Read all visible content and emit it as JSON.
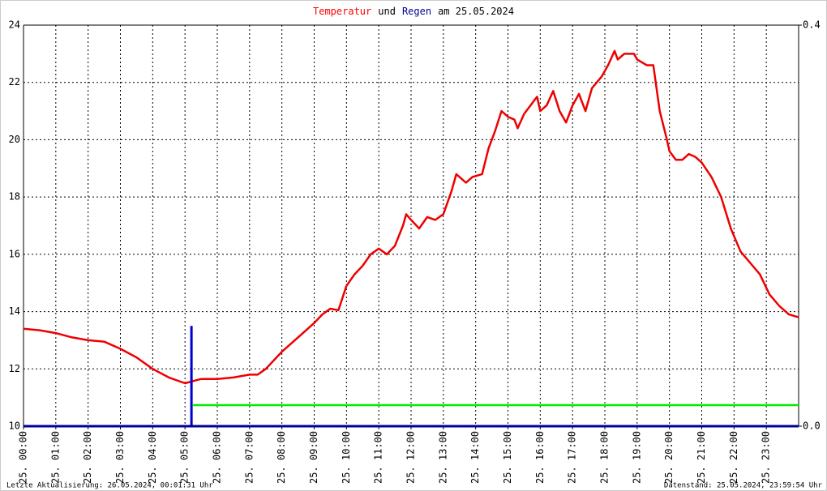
{
  "chart_data": {
    "type": "line",
    "title": [
      {
        "text": "Temperatur",
        "color": "#ff0000"
      },
      {
        "text": "und",
        "color": "#000000"
      },
      {
        "text": "Regen",
        "color": "#000099"
      },
      {
        "text": "am 25.05.2024",
        "color": "#000000"
      }
    ],
    "footer_left": "Letzte Aktualisierung: 26.05.2024, 00:01:31 Uhr",
    "footer_right": "Datenstand: 25.05.2024, 23:59:54 Uhr",
    "xlim": [
      0,
      24
    ],
    "xticks": [
      {
        "value": 0,
        "label": "25. 00:00"
      },
      {
        "value": 1,
        "label": "25. 01:00"
      },
      {
        "value": 2,
        "label": "25. 02:00"
      },
      {
        "value": 3,
        "label": "25. 03:00"
      },
      {
        "value": 4,
        "label": "25. 04:00"
      },
      {
        "value": 5,
        "label": "25. 05:00"
      },
      {
        "value": 6,
        "label": "25. 06:00"
      },
      {
        "value": 7,
        "label": "25. 07:00"
      },
      {
        "value": 8,
        "label": "25. 08:00"
      },
      {
        "value": 9,
        "label": "25. 09:00"
      },
      {
        "value": 10,
        "label": "25. 10:00"
      },
      {
        "value": 11,
        "label": "25. 11:00"
      },
      {
        "value": 12,
        "label": "25. 12:00"
      },
      {
        "value": 13,
        "label": "25. 13:00"
      },
      {
        "value": 14,
        "label": "25. 14:00"
      },
      {
        "value": 15,
        "label": "25. 15:00"
      },
      {
        "value": 16,
        "label": "25. 16:00"
      },
      {
        "value": 17,
        "label": "25. 17:00"
      },
      {
        "value": 18,
        "label": "25. 18:00"
      },
      {
        "value": 19,
        "label": "25. 19:00"
      },
      {
        "value": 20,
        "label": "25. 20:00"
      },
      {
        "value": 21,
        "label": "25. 21:00"
      },
      {
        "value": 22,
        "label": "25. 22:00"
      },
      {
        "value": 23,
        "label": "25. 23:00"
      }
    ],
    "ylim": [
      10,
      24
    ],
    "yticks": [
      10,
      12,
      14,
      16,
      18,
      20,
      22,
      24
    ],
    "y2lim": [
      0,
      0.4
    ],
    "y2ticks": [
      {
        "value": 0,
        "label": "0.0"
      },
      0.4
    ],
    "grid": true,
    "series": [
      {
        "color": "#ee0000",
        "x": [
          0,
          0.5,
          1,
          1.5,
          2,
          2.5,
          3,
          3.5,
          4,
          4.5,
          5,
          5.5,
          6,
          6.5,
          7,
          7.25,
          7.5,
          8,
          8.5,
          9,
          9.25,
          9.5,
          9.75,
          10,
          10.25,
          10.5,
          10.75,
          11,
          11.25,
          11.5,
          11.75,
          11.85,
          12,
          12.25,
          12.5,
          12.75,
          13,
          13.25,
          13.4,
          13.7,
          13.9,
          14.2,
          14.4,
          14.6,
          14.8,
          15,
          15.2,
          15.3,
          15.5,
          15.7,
          15.9,
          16,
          16.2,
          16.4,
          16.6,
          16.8,
          17,
          17.2,
          17.4,
          17.6,
          17.9,
          18.1,
          18.3,
          18.4,
          18.6,
          18.9,
          19,
          19.3,
          19.5,
          19.7,
          19.9,
          20,
          20.2,
          20.4,
          20.6,
          20.8,
          21,
          21.3,
          21.6,
          21.9,
          22.2,
          22.5,
          22.8,
          23.1,
          23.4,
          23.7,
          24
        ],
        "values": [
          13.4,
          13.35,
          13.25,
          13.1,
          13.0,
          12.95,
          12.7,
          12.4,
          12.0,
          11.7,
          11.5,
          11.65,
          11.65,
          11.7,
          11.8,
          11.8,
          12.0,
          12.6,
          13.1,
          13.6,
          13.9,
          14.1,
          14.05,
          14.9,
          15.3,
          15.6,
          16.0,
          16.2,
          16.0,
          16.3,
          17.0,
          17.4,
          17.2,
          16.9,
          17.3,
          17.2,
          17.4,
          18.2,
          18.8,
          18.5,
          18.7,
          18.8,
          19.7,
          20.3,
          21.0,
          20.8,
          20.7,
          20.4,
          20.9,
          21.2,
          21.5,
          21.0,
          21.2,
          21.7,
          21.0,
          20.6,
          21.2,
          21.6,
          21.0,
          21.8,
          22.2,
          22.6,
          23.1,
          22.8,
          23.0,
          23.0,
          22.8,
          22.6,
          22.6,
          21.0,
          20.1,
          19.6,
          19.3,
          19.3,
          19.5,
          19.4,
          19.2,
          18.7,
          18.0,
          16.9,
          16.1,
          15.7,
          15.3,
          14.6,
          14.2,
          13.9,
          13.8
        ]
      },
      {
        "color": "#0000cc",
        "axis": "y2",
        "kind": "bar",
        "x": [
          5.2
        ],
        "values": [
          0.1
        ]
      },
      {
        "color": "#00ee00",
        "axis": "y2",
        "x": [
          5.25,
          24
        ],
        "values": [
          0.021,
          0.021
        ]
      }
    ]
  }
}
